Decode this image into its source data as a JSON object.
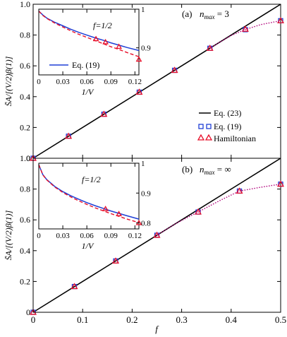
{
  "chart_data": [
    {
      "type": "line",
      "panel_label": "(a)",
      "nmax_label": "n",
      "nmax_sub": "max",
      "nmax_value": " = 3",
      "ylabel": "S̄A/[(V/2)β(1)]",
      "ylim": [
        0,
        1
      ],
      "xlim": [
        0,
        0.5
      ],
      "yticks": [
        "0",
        "0.2",
        "0.4",
        "0.6",
        "0.8",
        "1.0"
      ],
      "xticks": [],
      "legend": [
        "Eq. (23)",
        "Eq. (19)",
        "Hamiltonian"
      ],
      "series": [
        {
          "name": "Eq. (23)",
          "style": "solid",
          "color": "#000000",
          "x": [
            0,
            0.5
          ],
          "y": [
            0,
            1
          ]
        },
        {
          "name": "Eq. (19)",
          "style": "squares",
          "color": "#1f3fd6",
          "x": [
            0,
            0.0714,
            0.1429,
            0.2143,
            0.2857,
            0.3571,
            0.4286,
            0.5
          ],
          "y": [
            0,
            0.143,
            0.286,
            0.429,
            0.571,
            0.714,
            0.835,
            0.893
          ]
        },
        {
          "name": "Hamiltonian",
          "style": "triangles",
          "color": "#e8102a",
          "x": [
            0,
            0.0714,
            0.1429,
            0.2143,
            0.2857,
            0.3571,
            0.4286,
            0.5
          ],
          "y": [
            0,
            0.143,
            0.286,
            0.429,
            0.571,
            0.714,
            0.838,
            0.893
          ]
        },
        {
          "name": "",
          "style": "dotted",
          "color": "#b0007a",
          "x": [
            0.3571,
            0.375,
            0.4,
            0.4286,
            0.46,
            0.5
          ],
          "y": [
            0.714,
            0.75,
            0.797,
            0.836,
            0.868,
            0.893
          ]
        }
      ],
      "inset": {
        "title": "f=1/2",
        "xlabel": "1/V",
        "xlim": [
          0,
          0.125
        ],
        "ylim": [
          0.83,
          1.0
        ],
        "xticks": [
          "0",
          "0.03",
          "0.06",
          "0.09",
          "0.12"
        ],
        "yticks": [
          "0.9",
          "1"
        ],
        "legend": "Eq. (19)",
        "series": [
          {
            "name": "Eq. (19)",
            "style": "solid",
            "color": "#1f3fd6",
            "x": [
              0,
              0.005,
              0.01,
              0.02,
              0.03,
              0.04,
              0.05,
              0.06,
              0.07,
              0.08,
              0.09,
              0.1,
              0.11,
              0.125
            ],
            "y": [
              0.995,
              0.985,
              0.977,
              0.966,
              0.957,
              0.948,
              0.94,
              0.933,
              0.926,
              0.92,
              0.913,
              0.907,
              0.901,
              0.893
            ]
          },
          {
            "name": "",
            "style": "dashed",
            "color": "#e8102a",
            "x": [
              0,
              0.005,
              0.01,
              0.02,
              0.03,
              0.04,
              0.05,
              0.06,
              0.07,
              0.08,
              0.09,
              0.1,
              0.11,
              0.125
            ],
            "y": [
              0.995,
              0.984,
              0.976,
              0.964,
              0.954,
              0.944,
              0.935,
              0.927,
              0.919,
              0.911,
              0.903,
              0.896,
              0.888,
              0.877
            ]
          },
          {
            "name": "",
            "style": "triangles",
            "color": "#e8102a",
            "x": [
              0.0714,
              0.0833,
              0.1,
              0.125
            ],
            "y": [
              0.923,
              0.915,
              0.903,
              0.87
            ]
          }
        ]
      }
    },
    {
      "type": "line",
      "panel_label": "(b)",
      "nmax_label": "n",
      "nmax_sub": "max",
      "nmax_value": " = ∞",
      "ylabel": "S̄A/[(V/2)β(1)]",
      "xlabel": "f",
      "ylim": [
        0,
        1
      ],
      "xlim": [
        0,
        0.5
      ],
      "yticks": [
        "0",
        "0.2",
        "0.4",
        "0.6",
        "0.8",
        "1.0"
      ],
      "xticks": [
        "0",
        "0.1",
        "0.2",
        "0.3",
        "0.4",
        "0.5"
      ],
      "series": [
        {
          "name": "Eq. (23)",
          "style": "solid",
          "color": "#000000",
          "x": [
            0,
            0.5
          ],
          "y": [
            0,
            1
          ]
        },
        {
          "name": "Eq. (19)",
          "style": "squares",
          "color": "#1f3fd6",
          "x": [
            0,
            0.0833,
            0.1667,
            0.25,
            0.3333,
            0.4167,
            0.5
          ],
          "y": [
            0,
            0.167,
            0.333,
            0.5,
            0.651,
            0.787,
            0.832
          ]
        },
        {
          "name": "Hamiltonian",
          "style": "triangles",
          "color": "#e8102a",
          "x": [
            0,
            0.0833,
            0.1667,
            0.25,
            0.3333,
            0.4167,
            0.5
          ],
          "y": [
            0,
            0.167,
            0.333,
            0.5,
            0.651,
            0.787,
            0.832
          ]
        },
        {
          "name": "",
          "style": "dotted",
          "color": "#b0007a",
          "x": [
            0.25,
            0.29,
            0.3333,
            0.375,
            0.4167,
            0.46,
            0.5
          ],
          "y": [
            0.5,
            0.58,
            0.651,
            0.722,
            0.787,
            0.812,
            0.832
          ]
        }
      ],
      "inset": {
        "title": "f=1/2",
        "xlabel": "1/V",
        "xlim": [
          0,
          0.125
        ],
        "ylim": [
          0.78,
          1.0
        ],
        "xticks": [
          "0",
          "0.03",
          "0.06",
          "0.09",
          "0.12"
        ],
        "yticks": [
          "0.8",
          "0.9",
          "1"
        ],
        "series": [
          {
            "name": "Eq. (19)",
            "style": "solid",
            "color": "#1f3fd6",
            "x": [
              0,
              0.005,
              0.01,
              0.02,
              0.03,
              0.04,
              0.05,
              0.06,
              0.07,
              0.08,
              0.09,
              0.1,
              0.11,
              0.125
            ],
            "y": [
              0.995,
              0.962,
              0.945,
              0.922,
              0.905,
              0.891,
              0.879,
              0.868,
              0.858,
              0.849,
              0.84,
              0.832,
              0.824,
              0.813
            ]
          },
          {
            "name": "",
            "style": "dashed",
            "color": "#e8102a",
            "x": [
              0,
              0.005,
              0.01,
              0.02,
              0.03,
              0.04,
              0.05,
              0.06,
              0.07,
              0.08,
              0.09,
              0.1,
              0.11,
              0.125
            ],
            "y": [
              0.995,
              0.961,
              0.944,
              0.92,
              0.902,
              0.887,
              0.874,
              0.862,
              0.851,
              0.841,
              0.831,
              0.822,
              0.813,
              0.801
            ]
          },
          {
            "name": "",
            "style": "triangles",
            "color": "#e8102a",
            "x": [
              0.0833,
              0.1,
              0.125
            ],
            "y": [
              0.847,
              0.83,
              0.8
            ]
          }
        ]
      }
    }
  ]
}
